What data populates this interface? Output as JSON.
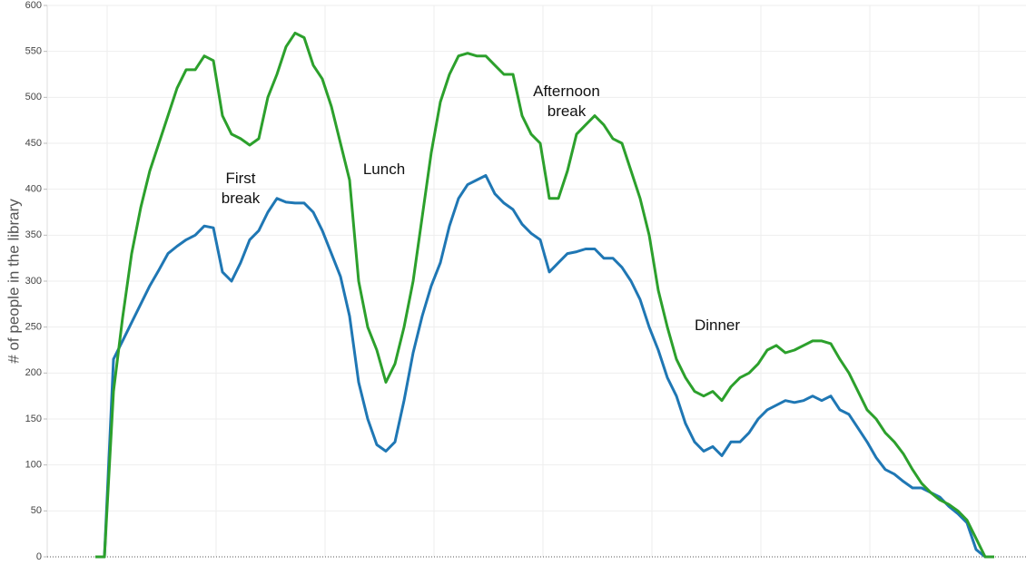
{
  "chart_data": {
    "type": "line",
    "y_label": "# of people in the library",
    "ylim": [
      0,
      600
    ],
    "yticks": [
      0,
      50,
      100,
      150,
      200,
      250,
      300,
      350,
      400,
      450,
      500,
      550,
      600
    ],
    "grid": true,
    "series": [
      {
        "color": "#1f77b4",
        "values": [
          0,
          0,
          215,
          235,
          255,
          275,
          295,
          312,
          330,
          338,
          345,
          350,
          360,
          358,
          310,
          300,
          320,
          345,
          355,
          375,
          390,
          386,
          385,
          385,
          375,
          355,
          330,
          305,
          262,
          190,
          150,
          122,
          115,
          125,
          170,
          222,
          262,
          295,
          320,
          360,
          390,
          405,
          410,
          415,
          395,
          385,
          378,
          362,
          352,
          345,
          310,
          320,
          330,
          332,
          335,
          335,
          325,
          325,
          315,
          300,
          280,
          250,
          225,
          195,
          175,
          145,
          125,
          115,
          120,
          110,
          125,
          125,
          135,
          150,
          160,
          165,
          170,
          168,
          170,
          175,
          170,
          175,
          160,
          155,
          140,
          125,
          108,
          95,
          90,
          82,
          75,
          75,
          70,
          65,
          55,
          47,
          37,
          8,
          0,
          0
        ]
      },
      {
        "color": "#2ca02c",
        "values": [
          0,
          0,
          180,
          260,
          330,
          380,
          420,
          450,
          480,
          510,
          530,
          530,
          545,
          540,
          480,
          460,
          455,
          448,
          455,
          500,
          525,
          555,
          570,
          565,
          535,
          520,
          490,
          450,
          410,
          300,
          250,
          225,
          190,
          210,
          250,
          300,
          370,
          440,
          495,
          525,
          545,
          548,
          545,
          545,
          535,
          525,
          525,
          480,
          460,
          450,
          390,
          390,
          420,
          460,
          470,
          480,
          470,
          455,
          450,
          420,
          390,
          350,
          290,
          250,
          215,
          195,
          180,
          175,
          180,
          170,
          185,
          195,
          200,
          210,
          225,
          230,
          222,
          225,
          230,
          235,
          235,
          232,
          215,
          200,
          180,
          160,
          150,
          135,
          125,
          112,
          95,
          80,
          70,
          62,
          57,
          50,
          40,
          20,
          0,
          0
        ]
      }
    ],
    "annotations": [
      "First break",
      "Lunch",
      "Afternoon break",
      "Dinner"
    ]
  }
}
